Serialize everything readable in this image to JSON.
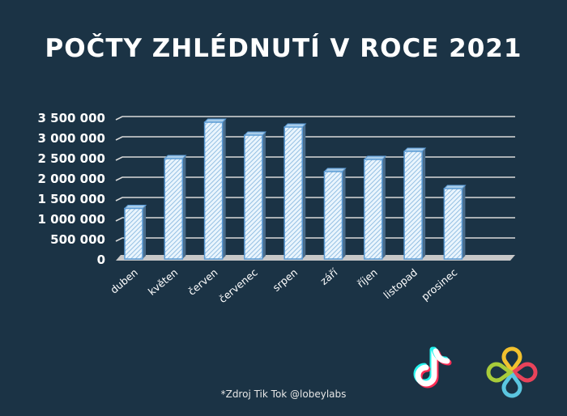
{
  "chart_data": {
    "type": "bar",
    "title": "POČTY ZHLÉDNUTÍ V ROCE 2021",
    "categories": [
      "duben",
      "květen",
      "červen",
      "červenec",
      "srpen",
      "září",
      "říjen",
      "listopad",
      "prosinec"
    ],
    "values": [
      1250000,
      2480000,
      3380000,
      3060000,
      3260000,
      2160000,
      2460000,
      2660000,
      1740000
    ],
    "yticks": [
      "0",
      "500 000",
      "1 000 000",
      "1 500 000",
      "2 000 000",
      "2 500 000",
      "3 000 000",
      "3 500 000"
    ],
    "ylim": [
      0,
      3500000
    ],
    "grid": true,
    "xlabel": "",
    "ylabel": "",
    "colors": {
      "background": "#1b3345",
      "bar_fill": "#d6ecfb",
      "bar_stroke": "#5b9bd5",
      "grid": "#d9d9d9"
    }
  },
  "source": "*Zdroj Tik Tok @lobeylabs",
  "logos": {
    "tiktok": "tiktok-logo",
    "lobeylabs": "lobeylabs-logo"
  }
}
